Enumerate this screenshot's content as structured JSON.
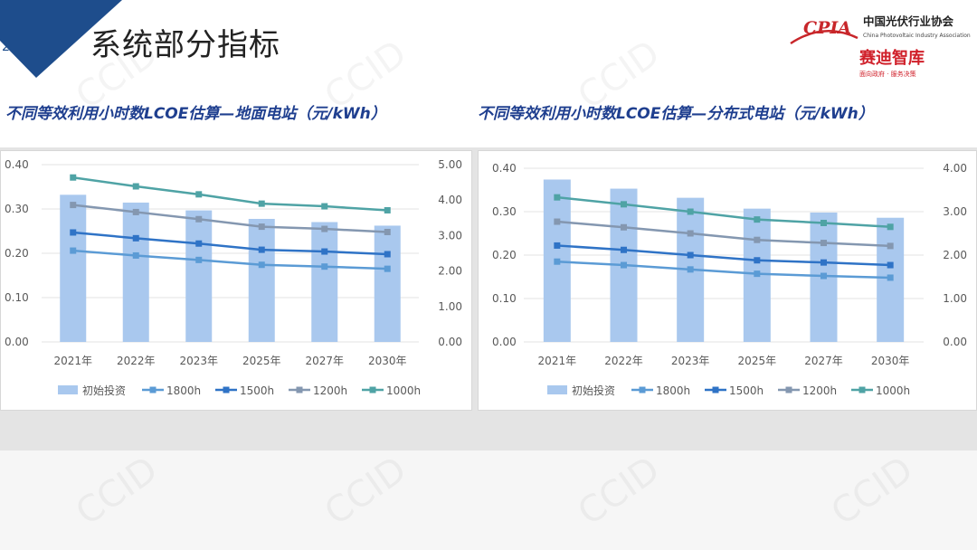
{
  "header": {
    "slide_number": "2",
    "title": "系统部分指标"
  },
  "logo": {
    "cpia_mark": "CPIA",
    "org_cn": "中国光伏行业协会",
    "org_en": "China Photovoltaic Industry Association",
    "ccid_cn": "赛迪智库",
    "ccid_tagline": "面向政府 · 服务决策"
  },
  "watermark": {
    "text": "CCID"
  },
  "colors": {
    "bar": "#a9c8ee",
    "s1800": "#5b9bd5",
    "s1500": "#2f73c6",
    "s1200": "#8497b0",
    "s1000": "#4fa3a5",
    "title_blue": "#1f3f8f"
  },
  "charts": [
    {
      "subtitle": "不同等效利用小时数LCOE估算—地面电站（元/kWh）",
      "chart_data": {
        "type": "bar+line",
        "categories": [
          "2021年",
          "2022年",
          "2023年",
          "2025年",
          "2027年",
          "2030年"
        ],
        "bar_series": {
          "name": "初始投资",
          "axis": "right",
          "values": [
            4.15,
            3.93,
            3.71,
            3.47,
            3.38,
            3.28
          ]
        },
        "line_series": [
          {
            "name": "1800h",
            "axis": "left",
            "values": [
              0.206,
              0.195,
              0.185,
              0.174,
              0.17,
              0.165
            ]
          },
          {
            "name": "1500h",
            "axis": "left",
            "values": [
              0.247,
              0.234,
              0.222,
              0.208,
              0.204,
              0.198
            ]
          },
          {
            "name": "1200h",
            "axis": "left",
            "values": [
              0.309,
              0.293,
              0.277,
              0.26,
              0.255,
              0.248
            ]
          },
          {
            "name": "1000h",
            "axis": "left",
            "values": [
              0.371,
              0.351,
              0.333,
              0.312,
              0.306,
              0.297
            ]
          }
        ],
        "y_left": {
          "ticks": [
            "0.00",
            "0.10",
            "0.20",
            "0.30",
            "0.40"
          ],
          "lim": [
            0,
            0.4
          ]
        },
        "y_right": {
          "ticks": [
            "0.00",
            "1.00",
            "2.00",
            "3.00",
            "4.00",
            "5.00"
          ],
          "lim": [
            0,
            5
          ]
        },
        "legend": [
          "初始投资",
          "1800h",
          "1500h",
          "1200h",
          "1000h"
        ],
        "legend_position": "bottom",
        "grid": true
      }
    },
    {
      "subtitle": "不同等效利用小时数LCOE估算—分布式电站（元/kWh）",
      "chart_data": {
        "type": "bar+line",
        "categories": [
          "2021年",
          "2022年",
          "2023年",
          "2025年",
          "2027年",
          "2030年"
        ],
        "bar_series": {
          "name": "初始投资",
          "axis": "right",
          "values": [
            3.74,
            3.53,
            3.32,
            3.07,
            2.98,
            2.86
          ]
        },
        "line_series": [
          {
            "name": "1800h",
            "axis": "left",
            "values": [
              0.185,
              0.177,
              0.167,
              0.157,
              0.152,
              0.148
            ]
          },
          {
            "name": "1500h",
            "axis": "left",
            "values": [
              0.222,
              0.212,
              0.2,
              0.188,
              0.183,
              0.177
            ]
          },
          {
            "name": "1200h",
            "axis": "left",
            "values": [
              0.277,
              0.264,
              0.25,
              0.235,
              0.228,
              0.221
            ]
          },
          {
            "name": "1000h",
            "axis": "left",
            "values": [
              0.333,
              0.317,
              0.3,
              0.282,
              0.274,
              0.265
            ]
          }
        ],
        "y_left": {
          "ticks": [
            "0.00",
            "0.10",
            "0.20",
            "0.30",
            "0.40"
          ],
          "lim": [
            0,
            0.4
          ]
        },
        "y_right": {
          "ticks": [
            "0.00",
            "1.00",
            "2.00",
            "3.00",
            "4.00"
          ],
          "lim": [
            0,
            4
          ]
        },
        "legend": [
          "初始投资",
          "1800h",
          "1500h",
          "1200h",
          "1000h"
        ],
        "legend_position": "bottom",
        "grid": true
      }
    }
  ]
}
